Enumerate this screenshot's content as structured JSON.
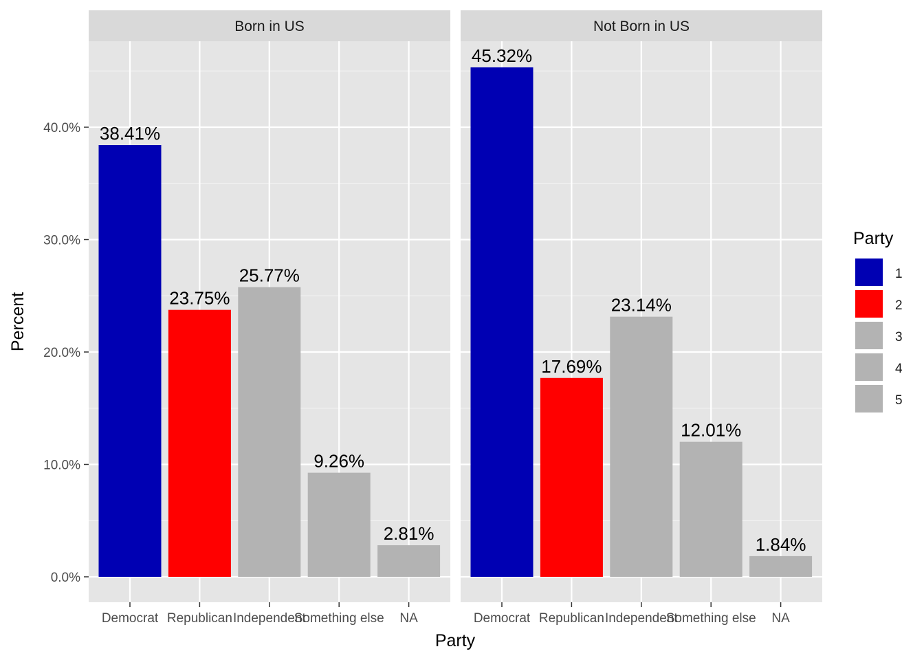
{
  "chart_data": {
    "type": "bar",
    "xlabel": "Party",
    "ylabel": "Percent",
    "ylim": [
      -2.2,
      50
    ],
    "yticks": [
      0,
      10,
      20,
      30,
      40
    ],
    "ytick_labels": [
      "0.0%",
      "10.0%",
      "20.0%",
      "30.0%",
      "40.0%"
    ],
    "categories": [
      "Democrat",
      "Republican",
      "Independent",
      "Something else",
      "NA"
    ],
    "colors": [
      "#0000b3",
      "#ff0000",
      "#b3b3b3",
      "#b3b3b3",
      "#b3b3b3"
    ],
    "panels": [
      {
        "strip": "Born in US",
        "values": [
          38.41,
          23.75,
          25.77,
          9.26,
          2.81
        ],
        "labels": [
          "38.41%",
          "23.75%",
          "25.77%",
          "9.26%",
          "2.81%"
        ]
      },
      {
        "strip": "Not Born in US",
        "values": [
          45.32,
          17.69,
          23.14,
          12.01,
          1.84
        ],
        "labels": [
          "45.32%",
          "17.69%",
          "23.14%",
          "12.01%",
          "1.84%"
        ]
      }
    ],
    "legend": {
      "title": "Party",
      "position": "right",
      "entries": [
        {
          "label": "1",
          "color": "#0000b3"
        },
        {
          "label": "2",
          "color": "#ff0000"
        },
        {
          "label": "3",
          "color": "#b3b3b3"
        },
        {
          "label": "4",
          "color": "#b3b3b3"
        },
        {
          "label": "5",
          "color": "#b3b3b3"
        }
      ]
    },
    "grid": true,
    "panel_background": "#e5e5e5",
    "strip_background": "#d9d9d9"
  }
}
